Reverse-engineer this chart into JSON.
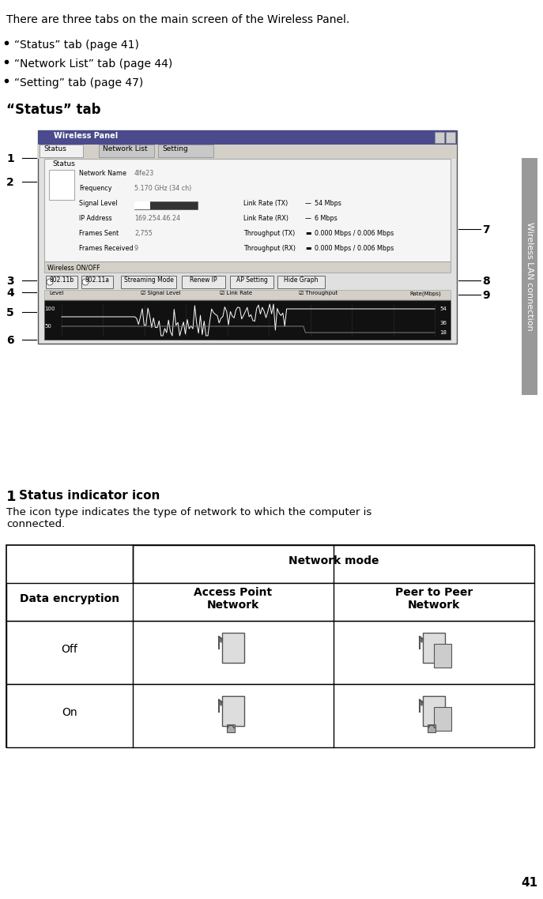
{
  "title": "Wireless LAN connection",
  "page_number": "41",
  "bg_color": "#ffffff",
  "intro_text": "There are three tabs on the main screen of the Wireless Panel.",
  "bullets": [
    "“Status” tab (page 41)",
    "“Network List” tab (page 44)",
    "“Setting” tab (page 47)"
  ],
  "section_heading": "“Status” tab",
  "callout_numbers": [
    "1",
    "2",
    "3",
    "4",
    "5",
    "6",
    "7",
    "8",
    "9"
  ],
  "item1_heading": "Status indicator icon",
  "item1_body": "The icon type indicates the type of network to which the computer is\nconnected.",
  "table_header_main": "Network mode",
  "table_col1_header": "Data encryption",
  "table_col2_header": "Access Point\nNetwork",
  "table_col3_header": "Peer to Peer\nNetwork",
  "table_row1_label": "Off",
  "table_row2_label": "On",
  "sidebar_text": "Wireless LAN connection",
  "sidebar_color": "#808080"
}
